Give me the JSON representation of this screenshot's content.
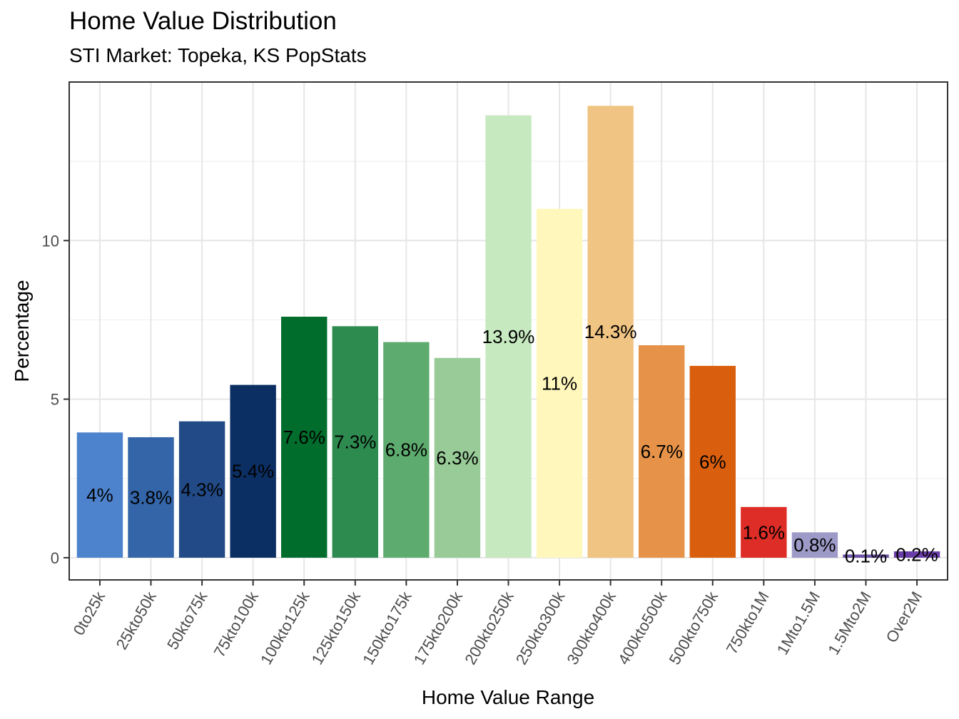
{
  "chart_data": {
    "type": "bar",
    "title": "Home Value Distribution",
    "subtitle": "STI Market: Topeka, KS PopStats",
    "xlabel": "Home Value Range",
    "ylabel": "Percentage",
    "categories": [
      "0to25k",
      "25kto50k",
      "50kto75k",
      "75kto100k",
      "100kto125k",
      "125kto150k",
      "150kto175k",
      "175kto200k",
      "200kto250k",
      "250kto300k",
      "300kto400k",
      "400kto500k",
      "500kto750k",
      "750kto1M",
      "1Mto1.5M",
      "1.5Mto2M",
      "Over2M"
    ],
    "values": [
      3.95,
      3.8,
      4.3,
      5.45,
      7.6,
      7.3,
      6.8,
      6.3,
      13.95,
      11.0,
      14.25,
      6.7,
      6.05,
      1.6,
      0.8,
      0.1,
      0.2
    ],
    "data_labels": [
      "4%",
      "3.8%",
      "4.3%",
      "5.4%",
      "7.6%",
      "7.3%",
      "6.8%",
      "6.3%",
      "13.9%",
      "11%",
      "14.3%",
      "6.7%",
      "6%",
      "1.6%",
      "0.8%",
      "0.1%",
      "0.2%"
    ],
    "colors": [
      "#4d83cd",
      "#3465a8",
      "#214a86",
      "#0c2f63",
      "#006d2c",
      "#2e8b50",
      "#5eab6f",
      "#98cb98",
      "#c7e9c0",
      "#fff7bc",
      "#f0c483",
      "#e69349",
      "#d95f0e",
      "#de2d26",
      "#9e9ac8",
      "#6a51a3",
      "#6a3ea8"
    ],
    "yticks": [
      0,
      5,
      10
    ],
    "ylim": [
      -0.7,
      15
    ],
    "grid": true,
    "legend": "none"
  }
}
